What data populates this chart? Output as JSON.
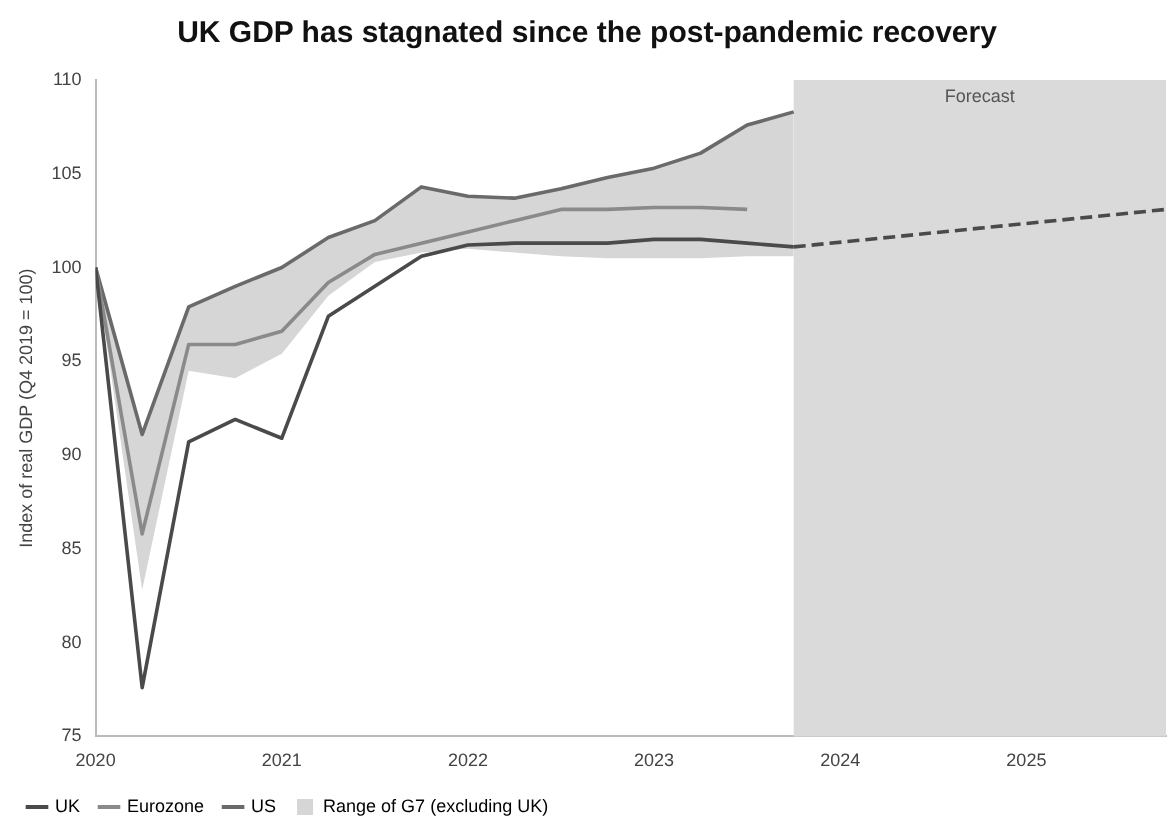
{
  "chart_data": {
    "type": "line",
    "title": "UK GDP has stagnated since the post-pandemic recovery",
    "ylabel": "Index of real GDP (Q4 2019 = 100)",
    "x": [
      2020,
      2020.25,
      2020.5,
      2020.75,
      2021,
      2021.25,
      2021.5,
      2021.75,
      2022,
      2022.25,
      2022.5,
      2022.75,
      2023,
      2023.25,
      2023.5,
      2023.75
    ],
    "series": [
      {
        "name": "UK",
        "color": "#4a4a4a",
        "values": [
          100,
          77.6,
          90.7,
          91.9,
          90.9,
          97.4,
          99.0,
          100.6,
          101.2,
          101.3,
          101.3,
          101.3,
          101.5,
          101.5,
          101.3,
          101.1
        ]
      },
      {
        "name": "Eurozone",
        "color": "#8a8a8a",
        "values": [
          100,
          85.8,
          95.9,
          95.9,
          96.6,
          99.2,
          100.7,
          101.3,
          101.9,
          102.5,
          103.1,
          103.1,
          103.2,
          103.2,
          103.1,
          null
        ]
      },
      {
        "name": "US",
        "color": "#6a6a6a",
        "values": [
          100,
          91.1,
          97.9,
          99.0,
          100.0,
          101.6,
          102.5,
          104.3,
          103.8,
          103.7,
          104.2,
          104.8,
          105.3,
          106.1,
          107.6,
          108.3
        ]
      },
      {
        "name": "Range of G7 (excluding UK)",
        "color": "#d6d6d6",
        "values": [
          null,
          null,
          null,
          null,
          null,
          null,
          null,
          null,
          null,
          null,
          null,
          null,
          null,
          null,
          null,
          null
        ],
        "lower": [
          100,
          82.8,
          94.5,
          94.1,
          95.4,
          98.5,
          100.3,
          100.8,
          101.0,
          100.8,
          100.6,
          100.5,
          100.5,
          100.5,
          100.6,
          100.6
        ],
        "upper": [
          100,
          91.1,
          97.9,
          99.0,
          100.0,
          101.6,
          102.5,
          104.3,
          103.8,
          103.7,
          104.2,
          104.8,
          105.3,
          106.1,
          107.6,
          108.3
        ]
      },
      {
        "color": "#4a4a4a",
        "line_style": "dashed",
        "x": [
          2023.75,
          2024.75,
          2025.75
        ],
        "values": [
          101.1,
          102.1,
          103.1
        ]
      }
    ],
    "xlim": [
      2020,
      2025.75
    ],
    "xticks": [
      2020,
      2021,
      2022,
      2023,
      2024,
      2025
    ],
    "ylim": [
      75,
      110
    ],
    "yticks": [
      75,
      80,
      85,
      90,
      95,
      100,
      105,
      110
    ],
    "bands": [
      {
        "axis": "x",
        "from": 2023.75,
        "to": 2025.75,
        "label": "Forecast",
        "color": "#dadada"
      }
    ],
    "grid": false,
    "legend": "bottom left",
    "marker": "none"
  }
}
